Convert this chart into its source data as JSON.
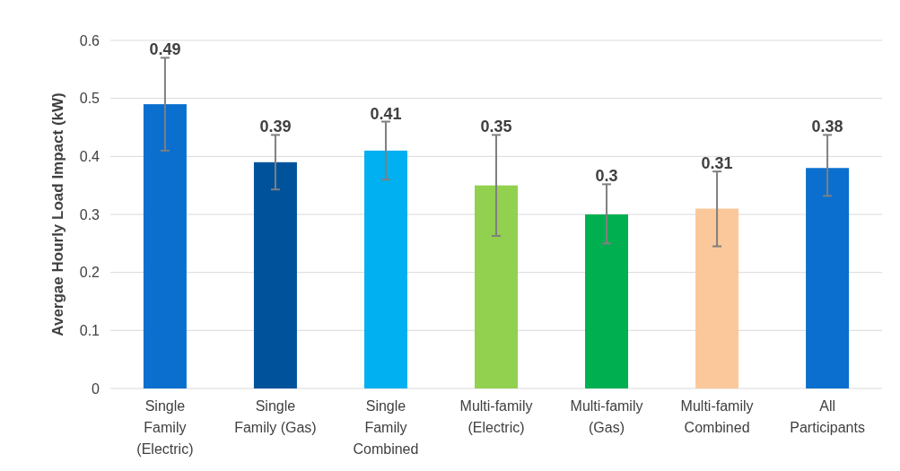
{
  "chart_data": {
    "type": "bar",
    "ylabel": "Avergae Hourly Load Impact (kW)",
    "categories": [
      "Single\nFamily\n(Electric)",
      "Single\nFamily (Gas)",
      "Single\nFamily\nCombined",
      "Multi-family\n(Electric)",
      "Multi-family\n(Gas)",
      "Multi-family\nCombined",
      "All\nParticipants"
    ],
    "values": [
      0.49,
      0.39,
      0.41,
      0.35,
      0.3,
      0.31,
      0.38
    ],
    "colors": [
      "#0a6fce",
      "#00539b",
      "#00b0f0",
      "#92d050",
      "#00b050",
      "#fac89a",
      "#0a6fce"
    ],
    "errors": [
      [
        0.41,
        0.57
      ],
      [
        0.343,
        0.437
      ],
      [
        0.36,
        0.46
      ],
      [
        0.263,
        0.437
      ],
      [
        0.25,
        0.352
      ],
      [
        0.245,
        0.374
      ],
      [
        0.332,
        0.437
      ]
    ],
    "ylim": [
      0,
      0.6
    ],
    "yticks": [
      0,
      0.1,
      0.2,
      0.3,
      0.4,
      0.5,
      0.6
    ],
    "grid": "y",
    "data_labels": true
  }
}
